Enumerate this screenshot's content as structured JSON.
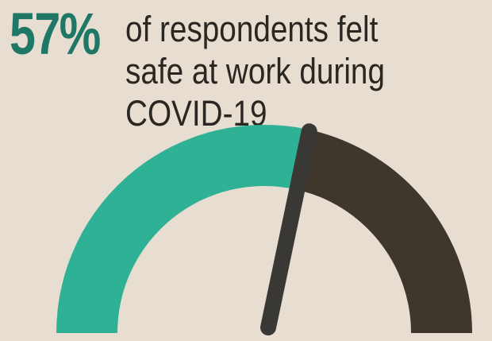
{
  "stat": {
    "value": "57%"
  },
  "caption": {
    "text": "of respondents felt safe at work during COVID-19"
  },
  "gauge": {
    "percent": 57,
    "colors": {
      "background": "#e7ddd0",
      "fill": "#2fb195",
      "remainder": "#3f372c",
      "needle": "#3a3835",
      "stat_text": "#1f7766",
      "caption_text": "#2a2722"
    }
  }
}
